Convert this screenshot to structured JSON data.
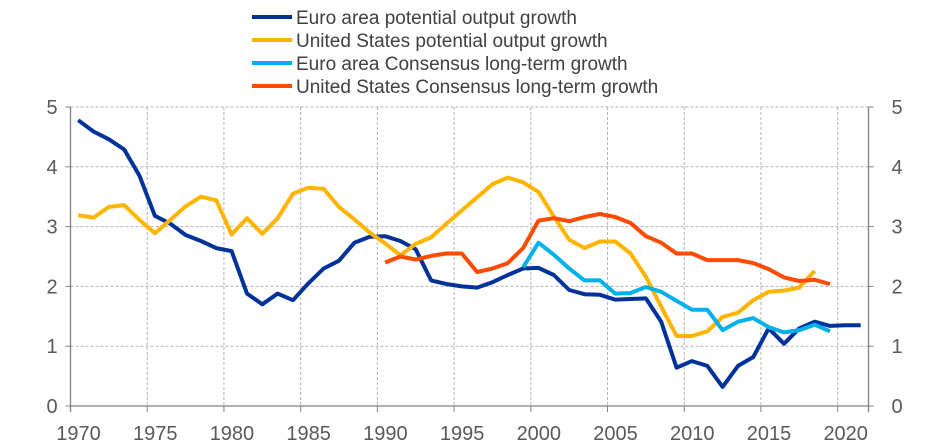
{
  "chart_data": {
    "type": "line",
    "title": "",
    "xlabel": "",
    "ylabel": "",
    "xlim": [
      1970,
      2022
    ],
    "ylim": [
      0,
      5
    ],
    "x_ticks": [
      1970,
      1975,
      1980,
      1985,
      1990,
      1995,
      2000,
      2005,
      2010,
      2015,
      2020
    ],
    "x_tick_labels": [
      "1970",
      "1975",
      "1980",
      "1985",
      "1990",
      "1995",
      "2000",
      "2005",
      "2010",
      "2015",
      "2020"
    ],
    "y_ticks": [
      0,
      1,
      2,
      3,
      4,
      5
    ],
    "y_tick_labels": [
      "0",
      "1",
      "2",
      "3",
      "4",
      "5"
    ],
    "secondary_y_axis": true,
    "grid": true,
    "legend_position": "top-center",
    "series": [
      {
        "name": "Euro area potential output growth",
        "color": "#003299",
        "start_year": 1970,
        "values": [
          4.78,
          4.59,
          4.46,
          4.29,
          3.85,
          3.18,
          3.05,
          2.86,
          2.76,
          2.64,
          2.59,
          1.88,
          1.7,
          1.88,
          1.77,
          2.05,
          2.3,
          2.43,
          2.73,
          2.83,
          2.84,
          2.76,
          2.62,
          2.1,
          2.04,
          2.0,
          1.98,
          2.07,
          2.19,
          2.3,
          2.31,
          2.19,
          1.94,
          1.87,
          1.86,
          1.78,
          1.79,
          1.8,
          1.41,
          0.64,
          0.75,
          0.67,
          0.32,
          0.67,
          0.82,
          1.3,
          1.04,
          1.3,
          1.41,
          1.34,
          1.35,
          1.35
        ]
      },
      {
        "name": "United States potential output growth",
        "color": "#FFB400",
        "start_year": 1970,
        "values": [
          3.19,
          3.15,
          3.33,
          3.36,
          3.11,
          2.89,
          3.11,
          3.34,
          3.5,
          3.44,
          2.87,
          3.14,
          2.88,
          3.14,
          3.55,
          3.65,
          3.63,
          3.33,
          3.12,
          2.9,
          2.72,
          2.52,
          2.71,
          2.82,
          3.05,
          3.27,
          3.49,
          3.71,
          3.82,
          3.74,
          3.58,
          3.17,
          2.78,
          2.64,
          2.75,
          2.75,
          2.55,
          2.16,
          1.66,
          1.17,
          1.17,
          1.25,
          1.49,
          1.56,
          1.77,
          1.91,
          1.93,
          1.98,
          2.26
        ]
      },
      {
        "name": "Euro area Consensus long-term growth",
        "color": "#00B1EA",
        "start_year": 1999,
        "values": [
          2.32,
          2.73,
          2.53,
          2.3,
          2.1,
          2.1,
          1.88,
          1.89,
          1.99,
          1.91,
          1.76,
          1.61,
          1.61,
          1.27,
          1.41,
          1.47,
          1.32,
          1.23,
          1.27,
          1.36,
          1.25
        ]
      },
      {
        "name": "United States Consensus long-term growth",
        "color": "#FF4B00",
        "start_year": 1990,
        "values": [
          2.4,
          2.5,
          2.45,
          2.51,
          2.55,
          2.55,
          2.24,
          2.3,
          2.39,
          2.64,
          3.1,
          3.14,
          3.09,
          3.16,
          3.21,
          3.16,
          3.06,
          2.84,
          2.73,
          2.55,
          2.55,
          2.44,
          2.44,
          2.44,
          2.39,
          2.29,
          2.15,
          2.09,
          2.11,
          2.04
        ]
      }
    ]
  }
}
